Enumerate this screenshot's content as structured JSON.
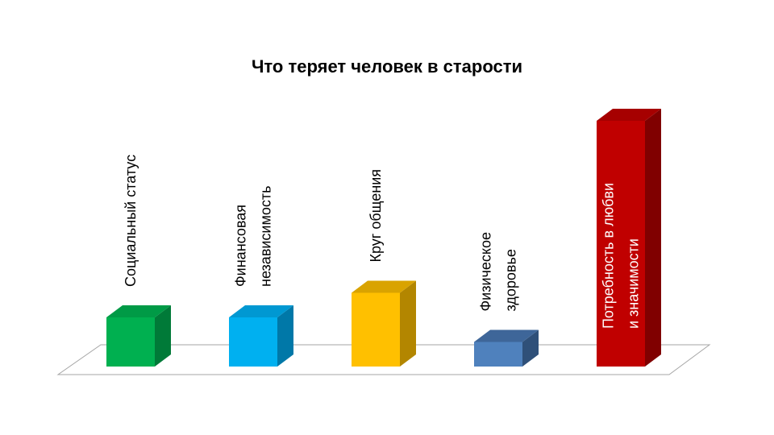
{
  "chart_data": {
    "type": "bar",
    "title": "Что теряет человек в старости",
    "xlabel": "",
    "ylabel": "",
    "ylim": [
      0,
      10
    ],
    "grid": false,
    "legend": "none",
    "categories": [
      [
        "Социальный статус"
      ],
      [
        "Финансовая",
        "независимость"
      ],
      [
        "Круг общения"
      ],
      [
        "Физическое",
        "здоровье"
      ],
      [
        "Потребность в любви",
        "и значимости"
      ]
    ],
    "values": [
      2,
      2,
      3,
      1,
      10
    ],
    "colors": {
      "front": [
        "#00B050",
        "#00B0F0",
        "#FFC000",
        "#4F81BD",
        "#C00000"
      ],
      "top": [
        "#009A46",
        "#0098D2",
        "#D9A300",
        "#3E6699",
        "#A60000"
      ],
      "side": [
        "#007A38",
        "#0078A8",
        "#B38600",
        "#2F5079",
        "#800000"
      ],
      "label": [
        "#000000",
        "#000000",
        "#000000",
        "#000000",
        "#FFFFFF"
      ]
    }
  }
}
